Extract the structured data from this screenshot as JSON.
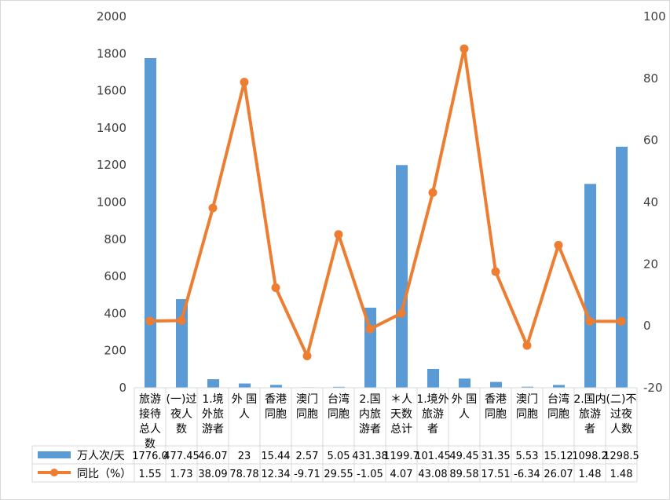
{
  "chart_data": {
    "type": "bar+line",
    "categories": [
      "旅游接待总人数",
      "(一)过夜人数",
      "1.境外旅游者",
      "外国人",
      "香港同胞",
      "澳门同胞",
      "台湾同胞",
      "2.国内旅游者",
      "＊人天数总计",
      "1.境外旅游者",
      "外国人",
      "香港同胞",
      "澳门同胞",
      "台湾同胞",
      "2.国内旅游者",
      "(二)不过夜人数"
    ],
    "category_lines": [
      [
        "旅游",
        "接待",
        "总人",
        "数"
      ],
      [
        "(一)过",
        "夜人",
        "数"
      ],
      [
        "1.境",
        "外旅",
        "游者"
      ],
      [
        "外 国",
        "人"
      ],
      [
        "香港",
        "同胞"
      ],
      [
        "澳门",
        "同胞"
      ],
      [
        "台湾",
        "同胞"
      ],
      [
        "2.国",
        "内旅",
        "游者"
      ],
      [
        "＊人",
        "天数",
        "总计"
      ],
      [
        "1.境外",
        "旅游",
        "者"
      ],
      [
        "外 国",
        "人"
      ],
      [
        "香港",
        "同胞"
      ],
      [
        "澳门",
        "同胞"
      ],
      [
        "台湾",
        "同胞"
      ],
      [
        "2.国内",
        "旅游",
        "者"
      ],
      [
        "(二)不",
        "过夜",
        "人数"
      ]
    ],
    "series": [
      {
        "name": "万人次/天",
        "type": "bar",
        "axis": "left",
        "color": "#5b9bd5",
        "values": [
          1776.0,
          477.45,
          46.07,
          23,
          15.44,
          2.57,
          5.05,
          431.38,
          1199.7,
          101.45,
          49.45,
          31.35,
          5.53,
          15.12,
          1098.2,
          1298.5
        ],
        "labels": [
          "1776.0",
          "477.45",
          "46.07",
          "23",
          "15.44",
          "2.57",
          "5.05",
          "431.38",
          "1199.7",
          "101.45",
          "49.45",
          "31.35",
          "5.53",
          "15.12",
          "1098.2",
          "1298.5"
        ]
      },
      {
        "name": "同比（%）",
        "type": "line",
        "axis": "right",
        "color": "#ed7d31",
        "values": [
          1.55,
          1.73,
          38.09,
          78.78,
          12.34,
          -9.71,
          29.55,
          -1.05,
          4.07,
          43.08,
          89.58,
          17.51,
          -6.34,
          26.07,
          1.48,
          1.48
        ],
        "labels": [
          "1.55",
          "1.73",
          "38.09",
          "78.78",
          "12.34",
          "-9.71",
          "29.55",
          "-1.05",
          "4.07",
          "43.08",
          "89.58",
          "17.51",
          "-6.34",
          "26.07",
          "1.48",
          "1.48"
        ]
      }
    ],
    "y_left": {
      "range": [
        0,
        2000
      ],
      "ticks": [
        "0",
        "200",
        "400",
        "600",
        "800",
        "1000",
        "1200",
        "1400",
        "1600",
        "1800",
        "2000"
      ]
    },
    "y_right": {
      "range": [
        -20,
        100
      ],
      "ticks": [
        "-20",
        "0",
        "20",
        "40",
        "60",
        "80",
        "100"
      ]
    },
    "grid": false,
    "legend": "data-table"
  }
}
